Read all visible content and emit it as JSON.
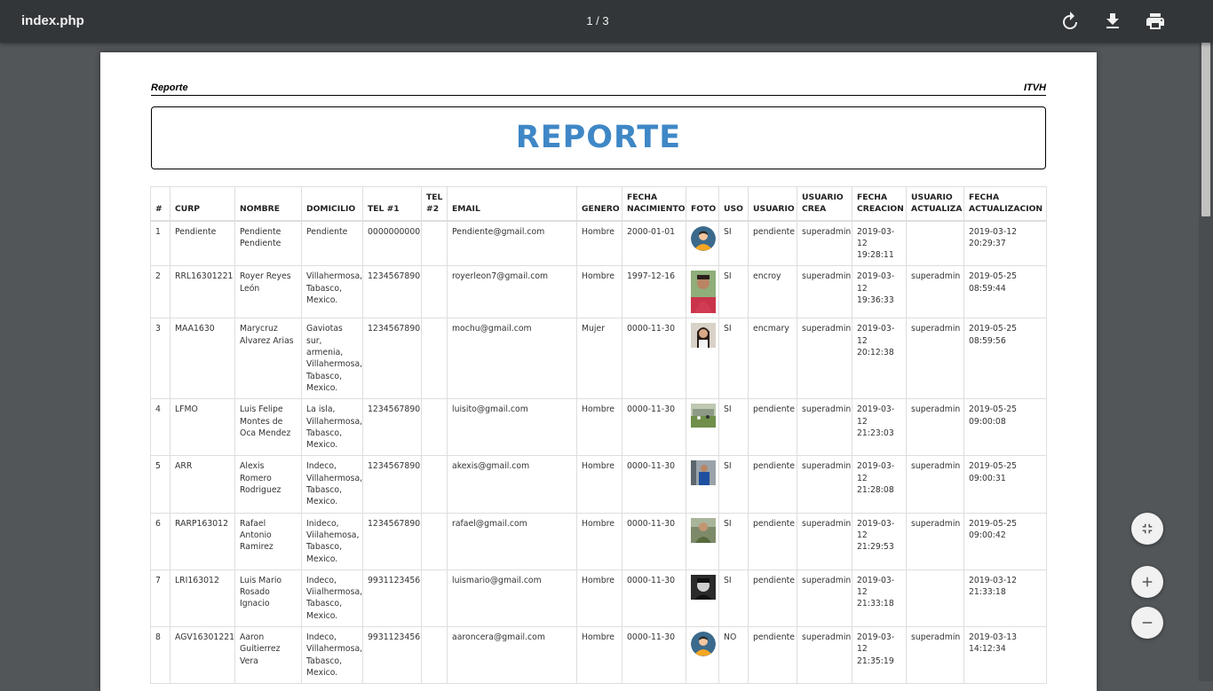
{
  "toolbar": {
    "title": "index.php",
    "page_indicator": "1 / 3",
    "icons": [
      "rotate-icon",
      "download-icon",
      "print-icon"
    ]
  },
  "document": {
    "header_left": "Reporte",
    "header_right": "ITVH",
    "title": "REPORTE",
    "title_color": "#3f87c6",
    "columns": [
      [
        "#"
      ],
      [
        "CURP"
      ],
      [
        "NOMBRE"
      ],
      [
        "DOMICILIO"
      ],
      [
        "TEL #1"
      ],
      [
        "TEL",
        "#2"
      ],
      [
        "EMAIL"
      ],
      [
        "GENERO"
      ],
      [
        "FECHA",
        "NACIMIENTO"
      ],
      [
        "FOTO"
      ],
      [
        "USO"
      ],
      [
        "USUARIO"
      ],
      [
        "USUARIO",
        "CREA"
      ],
      [
        "FECHA",
        "CREACION"
      ],
      [
        "USUARIO",
        "ACTUALIZA"
      ],
      [
        "FECHA",
        "ACTUALIZACION"
      ]
    ],
    "rows": [
      {
        "num": "1",
        "curp": "Pendiente",
        "nombre": [
          "Pendiente",
          "Pendiente"
        ],
        "domicilio": [
          "Pendiente"
        ],
        "tel1": "0000000000",
        "tel2": "",
        "email": "Pendiente@gmail.com",
        "genero": "Hombre",
        "fecha_nac": "2000-01-01",
        "foto": "avatar",
        "uso": "SI",
        "usuario": "pendiente",
        "usuario_crea": "superadmin",
        "fecha_creacion": [
          "2019-03-12",
          "19:28:11"
        ],
        "usuario_actualiza": "",
        "fecha_actualizacion": [
          "2019-03-12",
          "20:29:37"
        ]
      },
      {
        "num": "2",
        "curp": "RRL16301221",
        "nombre": [
          "Royer Reyes",
          "León"
        ],
        "domicilio": [
          "Villahermosa,",
          "Tabasco,",
          "Mexico."
        ],
        "tel1": "1234567890",
        "tel2": "",
        "email": "royerleon7@gmail.com",
        "genero": "Hombre",
        "fecha_nac": "1997-12-16",
        "foto": "photo-tall",
        "uso": "SI",
        "usuario": "encroy",
        "usuario_crea": "superadmin",
        "fecha_creacion": [
          "2019-03-12",
          "19:36:33"
        ],
        "usuario_actualiza": "superadmin",
        "fecha_actualizacion": [
          "2019-05-25",
          "08:59:44"
        ]
      },
      {
        "num": "3",
        "curp": "MAA1630",
        "nombre": [
          "Marycruz",
          "Alvarez Arias"
        ],
        "domicilio": [
          "Gaviotas sur,",
          "armenia,",
          "Villahermosa,",
          "Tabasco,",
          "Mexico."
        ],
        "tel1": "1234567890",
        "tel2": "",
        "email": "mochu@gmail.com",
        "genero": "Mujer",
        "fecha_nac": "0000-11-30",
        "foto": "photo-woman",
        "uso": "SI",
        "usuario": "encmary",
        "usuario_crea": "superadmin",
        "fecha_creacion": [
          "2019-03-12",
          "20:12:38"
        ],
        "usuario_actualiza": "superadmin",
        "fecha_actualizacion": [
          "2019-05-25",
          "08:59:56"
        ]
      },
      {
        "num": "4",
        "curp": "LFMO",
        "nombre": [
          "Luis Felipe",
          "Montes de",
          "Oca Mendez"
        ],
        "domicilio": [
          "La isla,",
          "Villahermosa,",
          "Tabasco,",
          "Mexico."
        ],
        "tel1": "1234567890",
        "tel2": "",
        "email": "luisito@gmail.com",
        "genero": "Hombre",
        "fecha_nac": "0000-11-30",
        "foto": "photo-field",
        "uso": "SI",
        "usuario": "pendiente",
        "usuario_crea": "superadmin",
        "fecha_creacion": [
          "2019-03-12",
          "21:23:03"
        ],
        "usuario_actualiza": "superadmin",
        "fecha_actualizacion": [
          "2019-05-25",
          "09:00:08"
        ]
      },
      {
        "num": "5",
        "curp": "ARR",
        "nombre": [
          "Alexis Romero",
          "Rodriguez"
        ],
        "domicilio": [
          "Indeco,",
          "Villahermosa,",
          "Tabasco,",
          "Mexico."
        ],
        "tel1": "1234567890",
        "tel2": "",
        "email": "akexis@gmail.com",
        "genero": "Hombre",
        "fecha_nac": "0000-11-30",
        "foto": "photo-man-blue",
        "uso": "SI",
        "usuario": "pendiente",
        "usuario_crea": "superadmin",
        "fecha_creacion": [
          "2019-03-12",
          "21:28:08"
        ],
        "usuario_actualiza": "superadmin",
        "fecha_actualizacion": [
          "2019-05-25",
          "09:00:31"
        ]
      },
      {
        "num": "6",
        "curp": "RARP163012",
        "nombre": [
          "Rafael Antonio",
          "Ramirez"
        ],
        "domicilio": [
          "Inideco,",
          "Viilahemosa,",
          "Tabasco,",
          "Mexico."
        ],
        "tel1": "1234567890",
        "tel2": "",
        "email": "rafael@gmail.com",
        "genero": "Hombre",
        "fecha_nac": "0000-11-30",
        "foto": "photo-man-green",
        "uso": "SI",
        "usuario": "pendiente",
        "usuario_crea": "superadmin",
        "fecha_creacion": [
          "2019-03-12",
          "21:29:53"
        ],
        "usuario_actualiza": "superadmin",
        "fecha_actualizacion": [
          "2019-05-25",
          "09:00:42"
        ]
      },
      {
        "num": "7",
        "curp": "LRI163012",
        "nombre": [
          "Luis Mario",
          "Rosado",
          "Ignacio"
        ],
        "domicilio": [
          "Indeco,",
          "Viialhermosa,",
          "Tabasco,",
          "Mexico."
        ],
        "tel1": "9931123456",
        "tel2": "",
        "email": "luismario@gmail.com",
        "genero": "Hombre",
        "fecha_nac": "0000-11-30",
        "foto": "photo-man-dark",
        "uso": "SI",
        "usuario": "pendiente",
        "usuario_crea": "superadmin",
        "fecha_creacion": [
          "2019-03-12",
          "21:33:18"
        ],
        "usuario_actualiza": "",
        "fecha_actualizacion": [
          "2019-03-12",
          "21:33:18"
        ]
      },
      {
        "num": "8",
        "curp": "AGV16301221",
        "nombre": [
          "Aaron",
          "Guitierrez",
          "Vera"
        ],
        "domicilio": [
          "Indeco,",
          "Villahermosa,",
          "Tabasco,",
          "Mexico."
        ],
        "tel1": "9931123456",
        "tel2": "",
        "email": "aaroncera@gmail.com",
        "genero": "Hombre",
        "fecha_nac": "0000-11-30",
        "foto": "avatar",
        "uso": "NO",
        "usuario": "pendiente",
        "usuario_crea": "superadmin",
        "fecha_creacion": [
          "2019-03-12",
          "21:35:19"
        ],
        "usuario_actualiza": "superadmin",
        "fecha_actualizacion": [
          "2019-03-13",
          "14:12:34"
        ]
      }
    ]
  },
  "controls": {
    "icons": [
      "fit-page-icon",
      "zoom-in-icon",
      "zoom-out-icon"
    ]
  }
}
